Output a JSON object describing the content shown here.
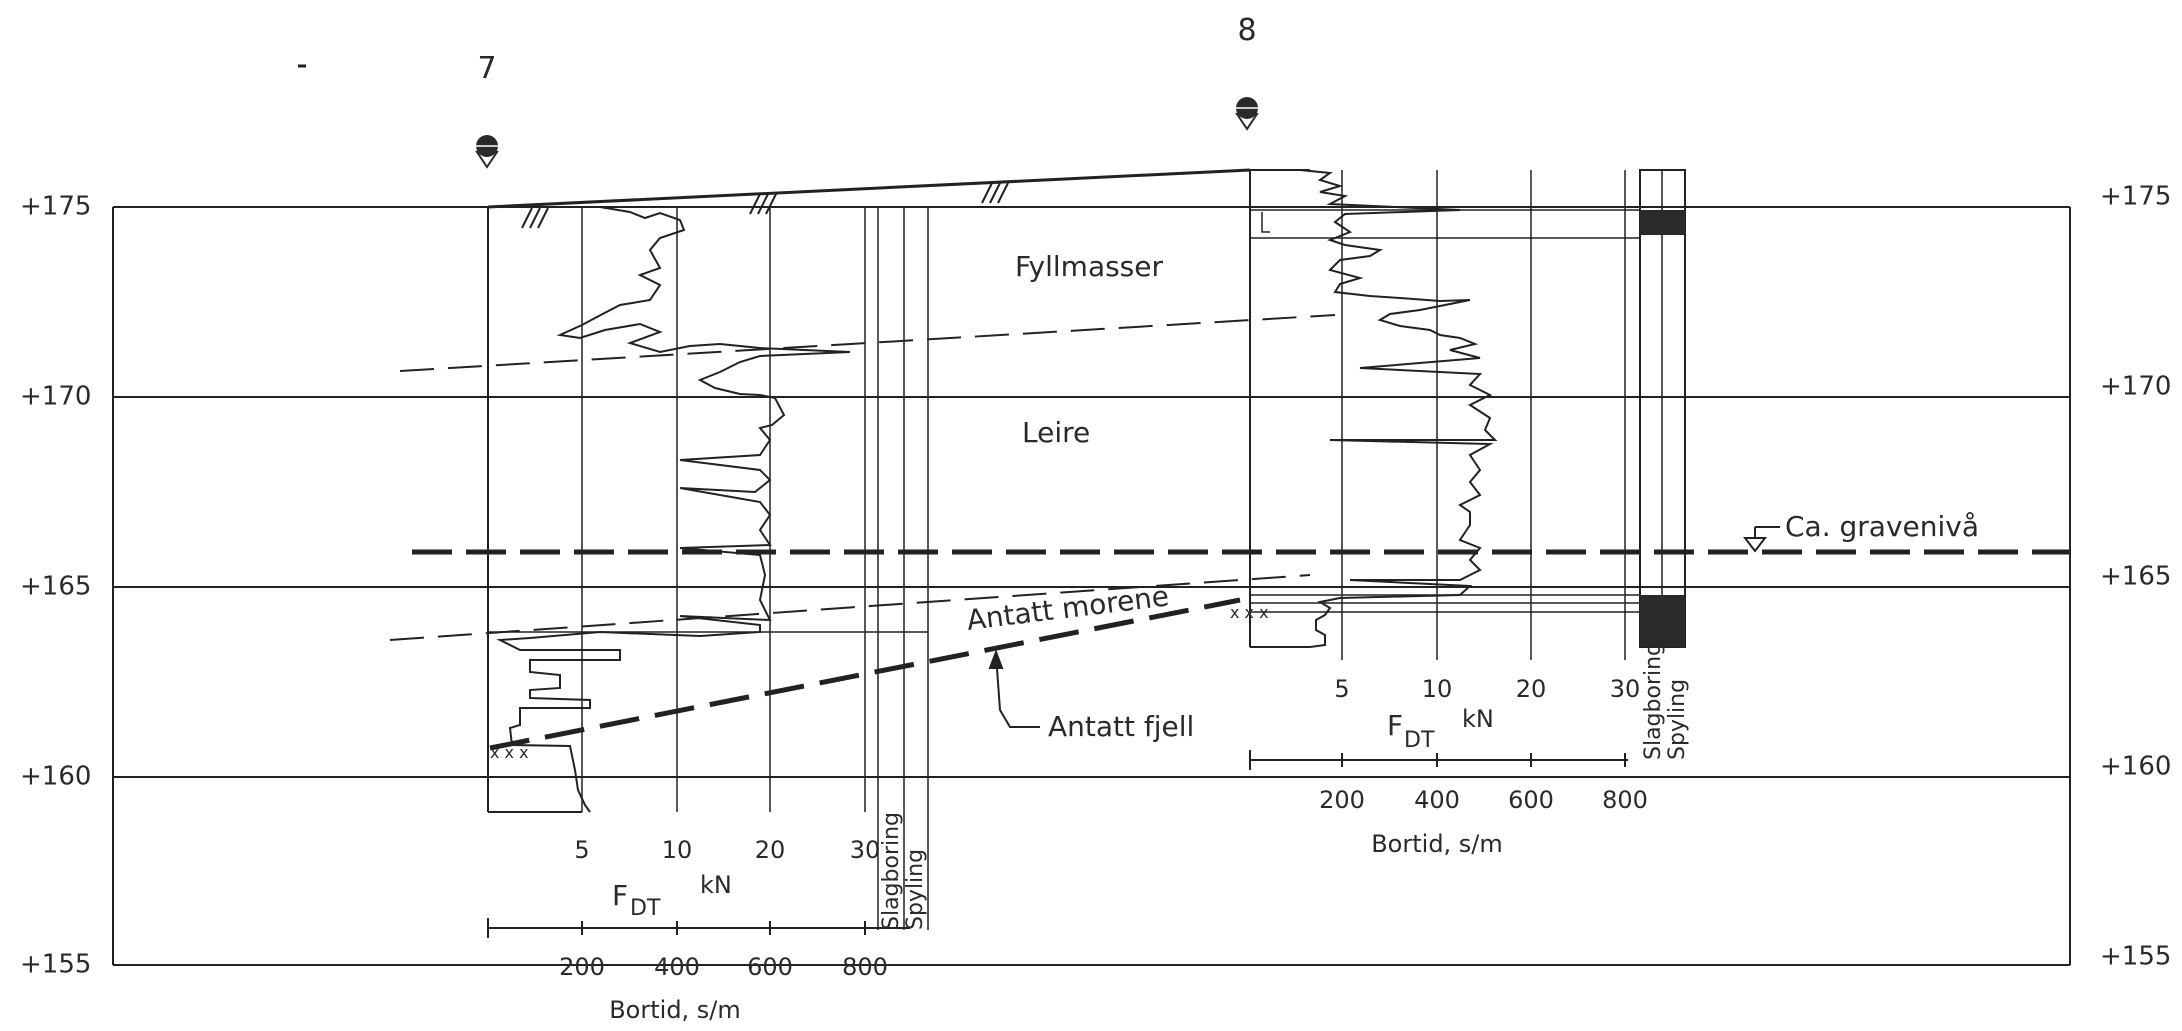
{
  "elevation_axis": {
    "left_labels": [
      "+175",
      "+170",
      "+165",
      "+160",
      "+155"
    ],
    "right_labels": [
      "+175",
      "+170",
      "+165",
      "+160",
      "+155"
    ]
  },
  "boreholes": [
    {
      "id": "7",
      "force_ticks": [
        "5",
        "10",
        "20",
        "30"
      ],
      "force_label": "F",
      "force_subscript": "DT",
      "force_unit": "kN",
      "time_ticks": [
        "200",
        "400",
        "600",
        "800"
      ],
      "time_label": "Bortid, s/m",
      "column_labels": [
        "Slagboring",
        "Spyling"
      ]
    },
    {
      "id": "8",
      "force_ticks": [
        "5",
        "10",
        "20",
        "30"
      ],
      "force_label": "F",
      "force_subscript": "DT",
      "force_unit": "kN",
      "time_ticks": [
        "200",
        "400",
        "600",
        "800"
      ],
      "time_label": "Bortid, s/m",
      "column_labels": [
        "Slagboring",
        "Spyling"
      ]
    }
  ],
  "layers": {
    "fill": "Fyllmasser",
    "clay": "Leire",
    "moraine": "Antatt morene",
    "rock": "Antatt fjell",
    "excavation": "Ca. gravenivå"
  }
}
